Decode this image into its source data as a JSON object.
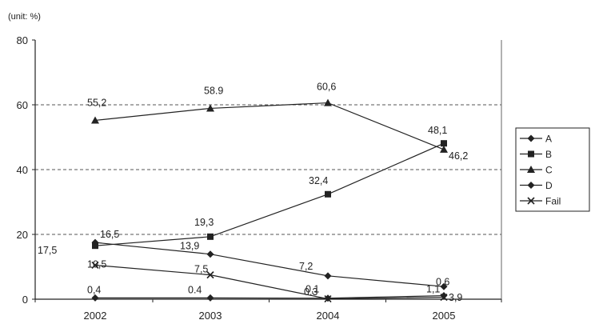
{
  "chart_data": {
    "type": "line",
    "unit_label": "(unit: %)",
    "title": "",
    "xlabel": "",
    "ylabel": "",
    "categories": [
      "2002",
      "2003",
      "2004",
      "2005"
    ],
    "ylim": [
      0,
      80
    ],
    "yticks": [
      "0",
      "20",
      "40",
      "60",
      "80"
    ],
    "grid": "horizontal dashed at 20, 40, 60",
    "legend_position": "right",
    "series": [
      {
        "name": "A",
        "marker": "diamond",
        "values": [
          0.4,
          0.4,
          0.3,
          1.1
        ],
        "labels": [
          "0,4",
          "0.4",
          "0.3",
          "1,1"
        ]
      },
      {
        "name": "B",
        "marker": "square",
        "values": [
          16.5,
          19.3,
          32.4,
          48.1
        ],
        "labels": [
          "16,5",
          "19,3",
          "32,4",
          "48,1"
        ]
      },
      {
        "name": "C",
        "marker": "triangle",
        "values": [
          55.2,
          58.9,
          60.6,
          46.2
        ],
        "labels": [
          "55,2",
          "58.9",
          "60,6",
          "46,2"
        ]
      },
      {
        "name": "D",
        "marker": "diamond",
        "values": [
          17.5,
          13.9,
          7.2,
          3.9
        ],
        "labels": [
          "17,5",
          "13,9",
          "7,2",
          "3,9"
        ]
      },
      {
        "name": "Fail",
        "marker": "x",
        "values": [
          10.5,
          7.5,
          0.1,
          0.6
        ],
        "labels": [
          "10,5",
          "7,5",
          "0,1",
          "0,6"
        ]
      }
    ],
    "colors": {
      "line": "#222222",
      "grid": "#555555",
      "axis": "#222222"
    }
  }
}
